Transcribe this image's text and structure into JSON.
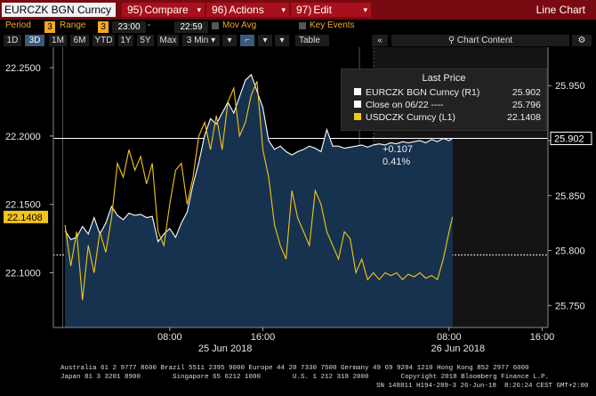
{
  "topbar": {
    "security": "EURCZK BGN Curncy",
    "compare": {
      "num": "95)",
      "label": "Compare"
    },
    "actions": {
      "num": "96)",
      "label": "Actions"
    },
    "edit": {
      "num": "97)",
      "label": "Edit"
    },
    "chart_type": "Line Chart"
  },
  "controls": {
    "period_label": "Period",
    "period_value": "3",
    "range_label": "Range",
    "range_value": "3",
    "time_start": "23:00",
    "time_end": "22:59",
    "mov_avg": "Mov Avg",
    "key_events": "Key Events"
  },
  "period_buttons": [
    "1D",
    "3D",
    "1M",
    "6M",
    "YTD",
    "1Y",
    "5Y",
    "Max"
  ],
  "selected_period": "3D",
  "interval": "3 Min",
  "table_label": "Table",
  "chart_content_label": "Chart Content",
  "legend": {
    "title": "Last Price",
    "rows": [
      {
        "label": "EURCZK BGN Curncy  (R1)",
        "value": "25.902",
        "color": "#ffffff"
      },
      {
        "label": "Close on 06/22 ----",
        "value": "25.796",
        "color": "#ffffff"
      },
      {
        "label": "USDCZK Curncy  (L1)",
        "value": "22.1408",
        "color": "#f5c518"
      }
    ]
  },
  "annotation": {
    "change": "+0.107",
    "pct": "0.41%"
  },
  "price_tags": {
    "right": "25.902",
    "left": "22.1408"
  },
  "footer": {
    "line1": "Australia 61 2 9777 8600 Brazil 5511 2395 9000 Europe 44 20 7330 7500 Germany 49 69 9204 1210 Hong Kong 852 2977 6000",
    "line2": "Japan 81 3 3201 8900        Singapore 65 6212 1000        U.S. 1 212 318 2000        Copyright 2018 Bloomberg Finance L.P.",
    "line3": "SN 148811 H194-289-3 26-Jun-18  8:26:24 CEST GMT+2:00"
  },
  "chart_data": {
    "type": "line",
    "left_axis": {
      "ticks": [
        22.1,
        22.15,
        22.2,
        22.25
      ],
      "tick_labels": [
        "22.1000",
        "22.1500",
        "22.2000",
        "22.2500"
      ],
      "ylim": [
        22.06,
        22.265
      ]
    },
    "right_axis": {
      "ticks": [
        25.75,
        25.8,
        25.85,
        25.9,
        25.95
      ],
      "tick_labels": [
        "25.750",
        "25.800",
        "25.850",
        "25.900",
        "25.950"
      ],
      "ylim": [
        25.73,
        25.985
      ]
    },
    "x_tick_labels": [
      "08:00",
      "16:00",
      "08:00",
      "16:00"
    ],
    "x_date_labels": [
      "25 Jun 2018",
      "26 Jun 2018"
    ],
    "x_tick_hours": [
      9,
      17,
      33,
      41
    ],
    "x_date_hours": [
      13,
      33
    ],
    "xlim": [
      -1,
      41.5
    ],
    "series": [
      {
        "name": "EURCZK BGN Curncy",
        "axis": "right",
        "color": "#ffffff",
        "x": [
          0,
          0.5,
          1,
          1.5,
          2,
          2.5,
          3,
          3.5,
          4,
          4.5,
          5,
          5.5,
          6,
          6.5,
          7,
          7.5,
          8,
          8.5,
          9,
          9.5,
          10,
          10.5,
          11,
          11.5,
          12,
          12.5,
          13,
          13.5,
          14,
          14.5,
          15,
          15.5,
          16,
          16.5,
          17,
          17.5,
          18,
          18.5,
          19,
          19.5,
          20,
          20.5,
          21,
          21.5,
          22,
          22.5,
          23,
          23.5,
          24,
          24.5,
          25,
          25.5,
          26,
          26.5,
          27,
          27.5,
          28,
          28.5,
          29,
          29.5,
          30,
          30.5,
          31,
          31.5,
          32,
          32.5,
          33,
          33.3
        ],
        "y": [
          25.818,
          25.81,
          25.812,
          25.822,
          25.815,
          25.83,
          25.815,
          25.825,
          25.84,
          25.832,
          25.828,
          25.834,
          25.832,
          25.833,
          25.83,
          25.831,
          25.808,
          25.815,
          25.82,
          25.812,
          25.825,
          25.835,
          25.86,
          25.88,
          25.905,
          25.92,
          25.915,
          25.925,
          25.935,
          25.925,
          25.94,
          25.955,
          25.96,
          25.945,
          25.93,
          25.9,
          25.892,
          25.895,
          25.89,
          25.887,
          25.89,
          25.892,
          25.895,
          25.893,
          25.89,
          25.91,
          25.895,
          25.895,
          25.893,
          25.894,
          25.895,
          25.896,
          25.894,
          25.896,
          25.897,
          25.896,
          25.898,
          25.897,
          25.899,
          25.898,
          25.899,
          25.9,
          25.898,
          25.901,
          25.899,
          25.902,
          25.9,
          25.902
        ]
      },
      {
        "name": "USDCZK Curncy",
        "axis": "left",
        "color": "#f5c518",
        "x": [
          0,
          0.5,
          1,
          1.5,
          2,
          2.5,
          3,
          3.5,
          4,
          4.5,
          5,
          5.5,
          6,
          6.5,
          7,
          7.5,
          8,
          8.5,
          9,
          9.5,
          10,
          10.5,
          11,
          11.5,
          12,
          12.5,
          13,
          13.5,
          14,
          14.5,
          15,
          15.5,
          16,
          16.5,
          17,
          17.5,
          18,
          18.5,
          19,
          19.5,
          20,
          20.5,
          21,
          21.5,
          22,
          22.5,
          23,
          23.5,
          24,
          24.5,
          25,
          25.5,
          26,
          26.5,
          27,
          27.5,
          28,
          28.5,
          29,
          29.5,
          30,
          30.5,
          31,
          31.5,
          32,
          32.5,
          33,
          33.3
        ],
        "y": [
          22.135,
          22.105,
          22.13,
          22.08,
          22.12,
          22.1,
          22.13,
          22.115,
          22.14,
          22.18,
          22.17,
          22.19,
          22.175,
          22.185,
          22.165,
          22.18,
          22.13,
          22.12,
          22.15,
          22.175,
          22.18,
          22.15,
          22.17,
          22.2,
          22.21,
          22.19,
          22.215,
          22.19,
          22.225,
          22.235,
          22.2,
          22.21,
          22.23,
          22.24,
          22.19,
          22.17,
          22.135,
          22.12,
          22.11,
          22.16,
          22.14,
          22.13,
          22.12,
          22.16,
          22.15,
          22.13,
          22.12,
          22.11,
          22.13,
          22.125,
          22.1,
          22.11,
          22.095,
          22.1,
          22.095,
          22.1,
          22.098,
          22.1,
          22.095,
          22.099,
          22.097,
          22.1,
          22.096,
          22.098,
          22.095,
          22.11,
          22.13,
          22.1408
        ]
      }
    ],
    "reference_lines": [
      {
        "label": "Close on 06/22",
        "axis": "right",
        "value": 25.796,
        "style": "dotted"
      }
    ],
    "last_price": {
      "EURCZK BGN Curncy": 25.902,
      "USDCZK Curncy": 22.1408,
      "change": 0.107,
      "change_pct": "0.41%"
    },
    "grid": false
  }
}
